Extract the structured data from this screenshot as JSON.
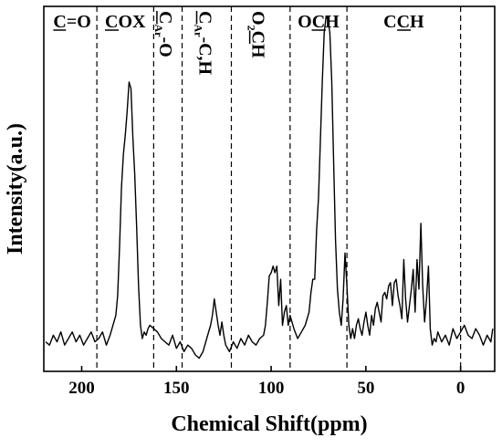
{
  "chart_data": {
    "type": "line",
    "xlabel": "Chemical Shift(ppm)",
    "ylabel": "Intensity(a.u.)",
    "xlim": [
      220,
      -18
    ],
    "x_reversed": true,
    "ylim": [
      -0.08,
      1.03
    ],
    "xticks": [
      200,
      150,
      100,
      50,
      0
    ],
    "yticks": [],
    "grid": false,
    "legend": "none",
    "line_color": "#000000",
    "divider_lines": [
      192,
      162,
      147,
      121,
      90,
      60,
      0
    ],
    "regions": [
      {
        "text": "C=O",
        "underline": [
          0
        ],
        "rotated": false,
        "x_center": 205
      },
      {
        "text": "COX",
        "underline": [
          0
        ],
        "rotated": false,
        "x_center": 177
      },
      {
        "main": "C",
        "sub": "Ar",
        "rest": "-O",
        "underline_main": true,
        "rotated": true,
        "x_center": 155
      },
      {
        "main": "C",
        "sub": "Ar",
        "rest": "-C,H",
        "underline_main": true,
        "rotated": true,
        "x_center": 134
      },
      {
        "main": "O",
        "sub": "2",
        "rest": "CH",
        "underline_rest_index": 0,
        "rotated": true,
        "x_center": 106
      },
      {
        "text": "OCH",
        "underline": [
          1
        ],
        "rotated": false,
        "x_center": 75
      },
      {
        "text": "CCH",
        "underline": [
          1
        ],
        "rotated": false,
        "x_center": 30
      }
    ],
    "series": [
      {
        "x": [
          219,
          217,
          215,
          213,
          211,
          209,
          207,
          205,
          203,
          201,
          199,
          197,
          195,
          193,
          191,
          189,
          187,
          185,
          184,
          182,
          181,
          180,
          179,
          178,
          177,
          176,
          175,
          174,
          173,
          172,
          171,
          170,
          169,
          168,
          167,
          166,
          165,
          164,
          162,
          160,
          158,
          156,
          154,
          152,
          150,
          148,
          146,
          144,
          142,
          140,
          138,
          136,
          134,
          132,
          131,
          130,
          129,
          128,
          127,
          126,
          125,
          124,
          122,
          120,
          118,
          116,
          114,
          112,
          110,
          108,
          106,
          104,
          103,
          102,
          101,
          100,
          99,
          98,
          97,
          96,
          95,
          94,
          93,
          92,
          91,
          90,
          88,
          86,
          84,
          82,
          80,
          79,
          78,
          77,
          76,
          75,
          74,
          73,
          72,
          71,
          70,
          69,
          68,
          67,
          66,
          65,
          64,
          63,
          62,
          61,
          60,
          59,
          58,
          57,
          56,
          55,
          54,
          53,
          52,
          51,
          50,
          49,
          48,
          47,
          46,
          45,
          44,
          43,
          42,
          41,
          40,
          39,
          38,
          37,
          36,
          35,
          34,
          33,
          32,
          31,
          30,
          29,
          28,
          27,
          26,
          25,
          24,
          23,
          22,
          21,
          20,
          19,
          18,
          17,
          16,
          15,
          14,
          13,
          12,
          10,
          8,
          6,
          4,
          2,
          0,
          -2,
          -4,
          -6,
          -8,
          -10,
          -12,
          -14,
          -16,
          -17
        ],
        "y": [
          0.01,
          0.0,
          0.03,
          0.01,
          0.04,
          0.0,
          0.02,
          0.04,
          0.01,
          0.03,
          0.0,
          0.02,
          0.04,
          0.01,
          0.02,
          0.04,
          0.0,
          0.03,
          0.05,
          0.09,
          0.15,
          0.3,
          0.48,
          0.58,
          0.64,
          0.71,
          0.8,
          0.78,
          0.63,
          0.52,
          0.36,
          0.18,
          0.06,
          0.02,
          0.04,
          0.03,
          0.05,
          0.06,
          0.05,
          0.04,
          0.02,
          0.01,
          0.0,
          0.03,
          -0.01,
          0.01,
          -0.02,
          0.0,
          -0.01,
          -0.03,
          -0.04,
          -0.02,
          0.02,
          0.06,
          0.09,
          0.14,
          0.1,
          0.06,
          0.03,
          0.07,
          0.03,
          0.0,
          -0.02,
          0.01,
          -0.01,
          0.02,
          0.0,
          0.03,
          0.01,
          0.0,
          0.02,
          0.03,
          0.06,
          0.13,
          0.21,
          0.22,
          0.24,
          0.22,
          0.24,
          0.12,
          0.2,
          0.06,
          0.1,
          0.12,
          0.06,
          0.09,
          0.05,
          0.02,
          0.04,
          0.06,
          0.1,
          0.16,
          0.2,
          0.2,
          0.35,
          0.45,
          0.62,
          0.8,
          0.95,
          1.0,
          0.99,
          0.95,
          0.8,
          0.55,
          0.32,
          0.17,
          0.1,
          0.06,
          0.14,
          0.28,
          0.18,
          0.06,
          0.02,
          0.05,
          0.02,
          0.06,
          0.08,
          0.05,
          0.03,
          0.07,
          0.1,
          0.06,
          0.03,
          0.09,
          0.06,
          0.11,
          0.13,
          0.1,
          0.07,
          0.15,
          0.16,
          0.14,
          0.18,
          0.19,
          0.12,
          0.19,
          0.2,
          0.15,
          0.12,
          0.08,
          0.26,
          0.14,
          0.07,
          0.12,
          0.17,
          0.23,
          0.1,
          0.26,
          0.17,
          0.37,
          0.18,
          0.07,
          0.14,
          0.24,
          0.05,
          0.0,
          0.02,
          0.01,
          0.04,
          0.01,
          0.03,
          0.0,
          0.05,
          0.02,
          0.04,
          0.06,
          0.03,
          0.02,
          0.05,
          0.03,
          0.0,
          0.03,
          0.01,
          0.05
        ]
      }
    ]
  }
}
